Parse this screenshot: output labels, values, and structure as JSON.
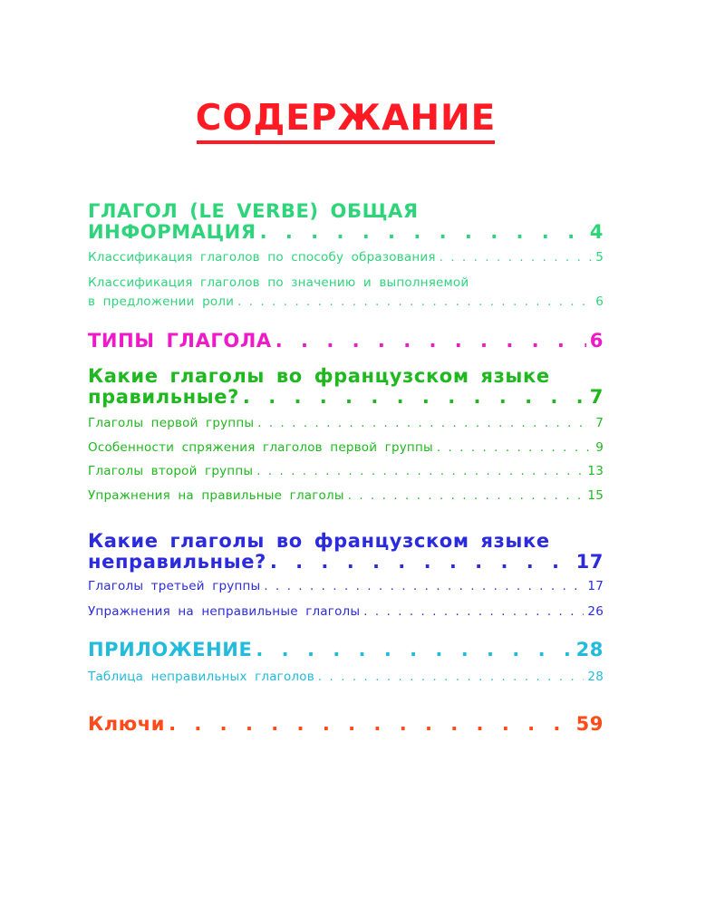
{
  "title": "СОДЕРЖАНИЕ",
  "colors": {
    "title": "#ff1a24",
    "section1": "#2ed47a",
    "section2": "#ee1ac8",
    "section3": "#1fb81f",
    "section4": "#2b2bdd",
    "section5": "#22bbdd",
    "section6": "#ff4a1a"
  },
  "toc": [
    {
      "line1": "ГЛАГОЛ (LE VERBE) ОБЩАЯ",
      "line2": "ИНФОРМАЦИЯ",
      "page": "4",
      "subs": [
        {
          "label": "Классификация глаголов по способу образования",
          "page": "5"
        },
        {
          "line1": "Классификация глаголов по значению и выполняемой",
          "label": "в предложении роли",
          "page": "6"
        }
      ]
    },
    {
      "line2": "ТИПЫ ГЛАГОЛА",
      "page": "6"
    },
    {
      "line1": "Какие глаголы во французском языке",
      "line2": "правильные?",
      "page": "7",
      "subs": [
        {
          "label": "Глаголы первой группы",
          "page": "7"
        },
        {
          "label": "Особенности спряжения глаголов первой группы",
          "page": "9"
        },
        {
          "label": "Глаголы второй группы",
          "page": "13"
        },
        {
          "label": "Упражнения на правильные глаголы",
          "page": "15"
        }
      ]
    },
    {
      "line1": "Какие глаголы во французском языке",
      "line2": "неправильные?",
      "page": "17",
      "subs": [
        {
          "label": "Глаголы третьей группы",
          "page": "17"
        },
        {
          "label": "Упражнения на неправильные глаголы",
          "page": "26"
        }
      ]
    },
    {
      "line2": "ПРИЛОЖЕНИЕ",
      "page": "28",
      "subs": [
        {
          "label": "Таблица неправильных глаголов",
          "page": "28"
        }
      ]
    },
    {
      "line2": "Ключи",
      "page": "59"
    }
  ]
}
